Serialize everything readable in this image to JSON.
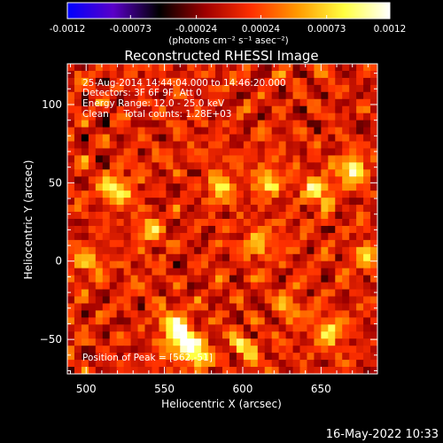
{
  "colorbar": {
    "tick_labels": [
      "-0.0012",
      "-0.00073",
      "-0.00024",
      "0.00024",
      "0.00073",
      "0.0012"
    ],
    "tick_values": [
      -0.0012,
      -0.00073,
      -0.00024,
      0.00024,
      0.00073,
      0.0012
    ],
    "range": [
      -0.0012,
      0.0012
    ],
    "unit_label": "(photons cm⁻² s⁻¹ asec⁻²)",
    "colors": [
      "#0000ff",
      "#5a00c8",
      "#000000",
      "#a00000",
      "#ff3000",
      "#ff9a00",
      "#ffff40",
      "#ffffff"
    ]
  },
  "chart_data": {
    "type": "heatmap",
    "title": "Reconstructed RHESSI Image",
    "xlabel": "Heliocentric X (arcsec)",
    "ylabel": "Heliocentric Y (arcsec)",
    "xlim": [
      488,
      686
    ],
    "ylim": [
      -72,
      126
    ],
    "x_ticks": [
      500,
      550,
      600,
      650
    ],
    "y_ticks": [
      -50,
      0,
      50,
      100
    ],
    "x_tick_labels": [
      "500",
      "550",
      "600",
      "650"
    ],
    "y_tick_labels": [
      "−50",
      "0",
      "50",
      "100"
    ],
    "peak": {
      "x": 562,
      "y": -51,
      "value": 0.0012
    },
    "hotspots": [
      {
        "x": 562,
        "y": -51,
        "value": 0.0012
      },
      {
        "x": 556,
        "y": -40,
        "value": 0.00095
      },
      {
        "x": 570,
        "y": -60,
        "value": 0.0009
      },
      {
        "x": 670,
        "y": 58,
        "value": 0.001
      },
      {
        "x": 648,
        "y": 44,
        "value": 0.0008
      },
      {
        "x": 617,
        "y": 50,
        "value": 0.0007
      },
      {
        "x": 520,
        "y": 45,
        "value": 0.0009
      },
      {
        "x": 586,
        "y": 48,
        "value": 0.0008
      },
      {
        "x": 656,
        "y": -46,
        "value": 0.0007
      },
      {
        "x": 680,
        "y": 4,
        "value": 0.00075
      },
      {
        "x": 540,
        "y": 20,
        "value": 0.0006
      },
      {
        "x": 500,
        "y": 0,
        "value": 0.00055
      },
      {
        "x": 610,
        "y": 10,
        "value": 0.0006
      },
      {
        "x": 630,
        "y": -30,
        "value": 0.0005
      },
      {
        "x": 600,
        "y": -55,
        "value": 0.0006
      }
    ],
    "annotations": [
      "25-Aug-2014 14:44:04.000 to 14:46:20.000",
      "Detectors: 3F 6F 9F, Att 0",
      "Energy Range: 12.0 - 25.0 keV",
      "Clean     Total counts: 1.28E+03"
    ],
    "peak_label": "Position of Peak = [562,-51]"
  },
  "footer": {
    "timestamp": "16-May-2022 10:33"
  }
}
